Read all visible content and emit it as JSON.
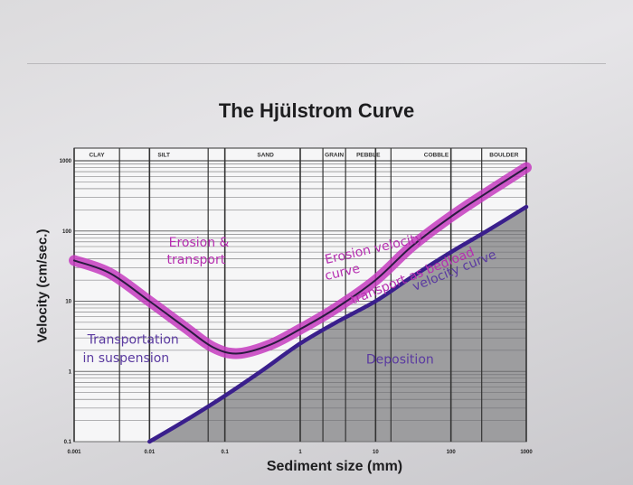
{
  "colors": {
    "deposition_fill": "#9d9d9f",
    "grid_line": "#6d6d6f",
    "erosion_highlight": "#c63cc0",
    "erosion_line": "#2a1a40",
    "deposition_line": "#3a1f8c",
    "annotation_magenta": "#b62fb0",
    "annotation_purple": "#5a3aa0"
  },
  "chart_data": {
    "type": "line",
    "title": "The Hjülstrom Curve",
    "xlabel": "Sediment size (mm)",
    "ylabel": "Velocity (cm/sec.)",
    "x_scale": "log",
    "y_scale": "log",
    "xlim": [
      0.001,
      1000
    ],
    "ylim": [
      0.1,
      1000
    ],
    "x_ticks": [
      {
        "value": 0.001,
        "label": "0.001"
      },
      {
        "value": 0.01,
        "label": "0.01"
      },
      {
        "value": 0.1,
        "label": "0.1"
      },
      {
        "value": 1,
        "label": "1"
      },
      {
        "value": 10,
        "label": "10"
      },
      {
        "value": 100,
        "label": "100"
      },
      {
        "value": 1000,
        "label": "1000"
      }
    ],
    "y_ticks": [
      {
        "value": 1000,
        "label": "1000"
      },
      {
        "value": 100,
        "label": "100"
      },
      {
        "value": 10,
        "label": "10"
      },
      {
        "value": 1,
        "label": "1"
      },
      {
        "value": 0.1,
        "label": "0.1"
      }
    ],
    "categories": [
      {
        "label": "CLAY",
        "from": 0.001,
        "to": 0.004
      },
      {
        "label": "SILT",
        "from": 0.004,
        "to": 0.06
      },
      {
        "label": "SAND",
        "from": 0.06,
        "to": 2
      },
      {
        "label": "GRAIN",
        "from": 2,
        "to": 4
      },
      {
        "label": "PEBBLE",
        "from": 4,
        "to": 16
      },
      {
        "label": "COBBLE",
        "from": 16,
        "to": 256
      },
      {
        "label": "BOULDER",
        "from": 256,
        "to": 1000
      }
    ],
    "series": [
      {
        "key": "erosion",
        "x": [
          0.001,
          0.003,
          0.01,
          0.03,
          0.07,
          0.15,
          0.4,
          1,
          3,
          10,
          30,
          100,
          300,
          1000
        ],
        "y": [
          38,
          25,
          10,
          4.2,
          2.2,
          1.8,
          2.4,
          4,
          8,
          20,
          60,
          160,
          350,
          800
        ]
      },
      {
        "key": "deposition",
        "x": [
          0.01,
          0.03,
          0.1,
          0.3,
          1,
          3,
          10,
          30,
          100,
          300,
          1000
        ],
        "y": [
          0.1,
          0.2,
          0.45,
          1,
          2.5,
          5,
          10,
          22,
          50,
          100,
          220
        ]
      }
    ],
    "annotations": [
      {
        "text": "Erosion &",
        "x": 0.018,
        "y": 60,
        "color": "annotation_magenta"
      },
      {
        "text": "transport",
        "x": 0.017,
        "y": 34,
        "color": "annotation_magenta"
      },
      {
        "text": "Erosion velocity",
        "x": 2.2,
        "y": 34,
        "color": "annotation_magenta",
        "rotate": -13
      },
      {
        "text": "curve",
        "x": 2.2,
        "y": 20,
        "color": "annotation_magenta",
        "rotate": -13
      },
      {
        "text": "transport as bedload",
        "x": 5,
        "y": 9,
        "color": "annotation_magenta",
        "rotate": -22
      },
      {
        "text": "velocity curve",
        "x": 33,
        "y": 14,
        "color": "annotation_purple",
        "rotate": -22
      },
      {
        "text": "Transportation",
        "x": 0.0015,
        "y": 2.5,
        "color": "annotation_purple"
      },
      {
        "text": "in suspension",
        "x": 0.0013,
        "y": 1.35,
        "color": "annotation_purple"
      },
      {
        "text": "Deposition",
        "x": 7.5,
        "y": 1.3,
        "color": "annotation_purple"
      }
    ]
  }
}
